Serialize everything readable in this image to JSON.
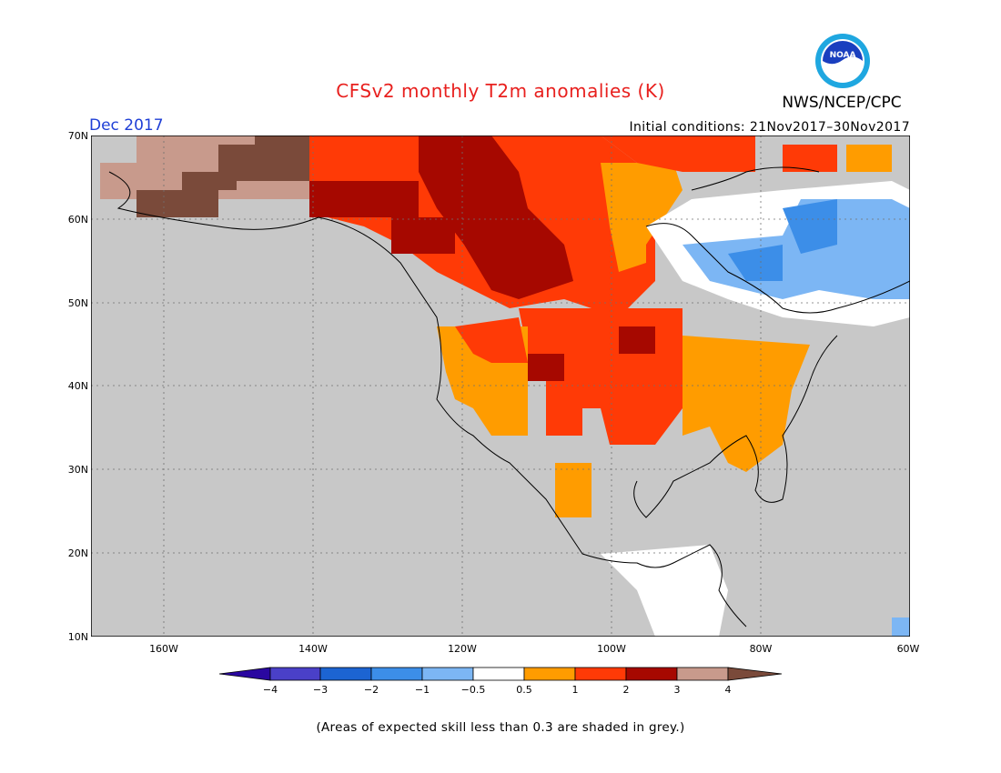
{
  "title": "CFSv2 monthly T2m anomalies (K)",
  "agency": "NWS/NCEP/CPC",
  "logo": {
    "text": "NOAA",
    "color": "#1a3fbf"
  },
  "valid_month": "Dec 2017",
  "initial_conditions": "Initial conditions: 21Nov2017–30Nov2017",
  "footnote": "(Areas of expected skill less than 0.3 are shaded in grey.)",
  "lat_labels": [
    "70N",
    "60N",
    "50N",
    "40N",
    "30N",
    "20N",
    "10N"
  ],
  "lon_labels": [
    "160W",
    "140W",
    "120W",
    "100W",
    "80W",
    "60W"
  ],
  "legend": {
    "ticks": [
      "−4",
      "−3",
      "−2",
      "−1",
      "−0.5",
      "0.5",
      "1",
      "2",
      "3",
      "4"
    ],
    "colors": {
      "lt_-4": "#2a07a0",
      "-4_-3": "#4a40c8",
      "-3_-2": "#1c64d2",
      "-2_-1": "#3c8ee8",
      "-1_-0.5": "#7cb6f4",
      "-0.5_0.5": "#ffffff",
      "0.5_1": "#ff9c00",
      "1_2": "#ff3a06",
      "2_3": "#a60800",
      "3_4": "#c89a8c",
      "gt_4": "#7a4a3a"
    }
  },
  "colors": {
    "low_skill": "#c8c8c8",
    "ocean": "#c8c8c8",
    "title": "#e8201e",
    "month": "#1f3fd6"
  }
}
